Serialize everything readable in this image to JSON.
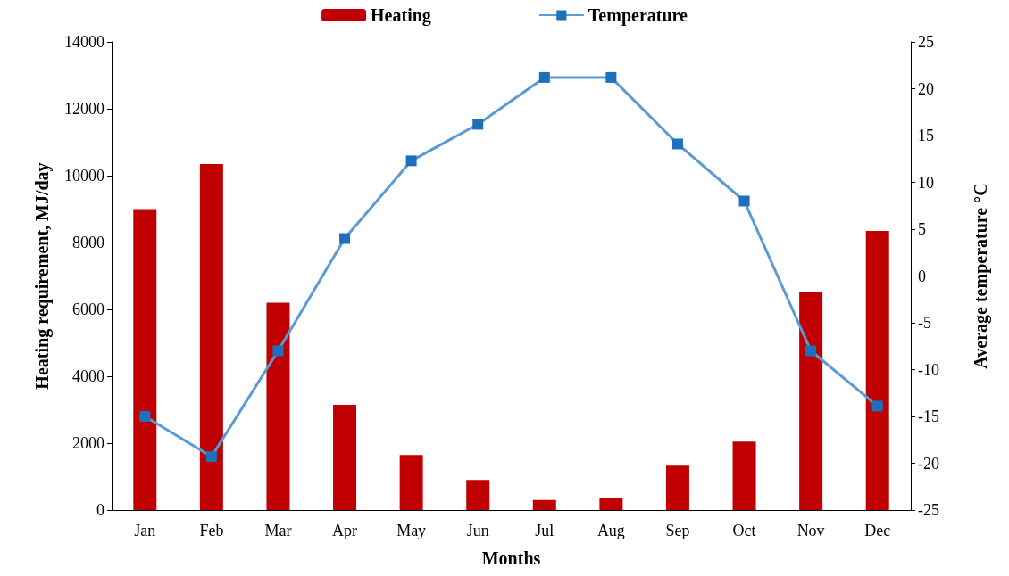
{
  "chart_data": {
    "type": "bar",
    "xlabel": "Months",
    "ylabel": "Heating requirement, MJ/day",
    "y2label": "Average temperature °C",
    "categories": [
      "Jan",
      "Feb",
      "Mar",
      "Apr",
      "May",
      "Jun",
      "Jul",
      "Aug",
      "Sep",
      "Oct",
      "Nov",
      "Dec"
    ],
    "series": [
      {
        "name": "Heating",
        "color": "#c00000",
        "values": [
          9000,
          10350,
          6200,
          3150,
          1650,
          900,
          300,
          350,
          1330,
          2050,
          6530,
          8350
        ]
      },
      {
        "name": "Temperature",
        "type": "line",
        "axis": "y2",
        "color": "#5b9bd5",
        "marker": "square",
        "values": [
          -15,
          -19.3,
          -8,
          4,
          12.3,
          16.2,
          21.2,
          21.2,
          14.1,
          8,
          -8,
          -13.9
        ]
      }
    ],
    "ylim": [
      0,
      14000
    ],
    "yticks": [
      0,
      2000,
      4000,
      6000,
      8000,
      10000,
      12000,
      14000
    ],
    "y2lim": [
      -25,
      25
    ],
    "y2ticks": [
      -25,
      -20,
      -15,
      -10,
      -5,
      0,
      5,
      10,
      15,
      20,
      25
    ],
    "grid": false,
    "legend": "top"
  }
}
